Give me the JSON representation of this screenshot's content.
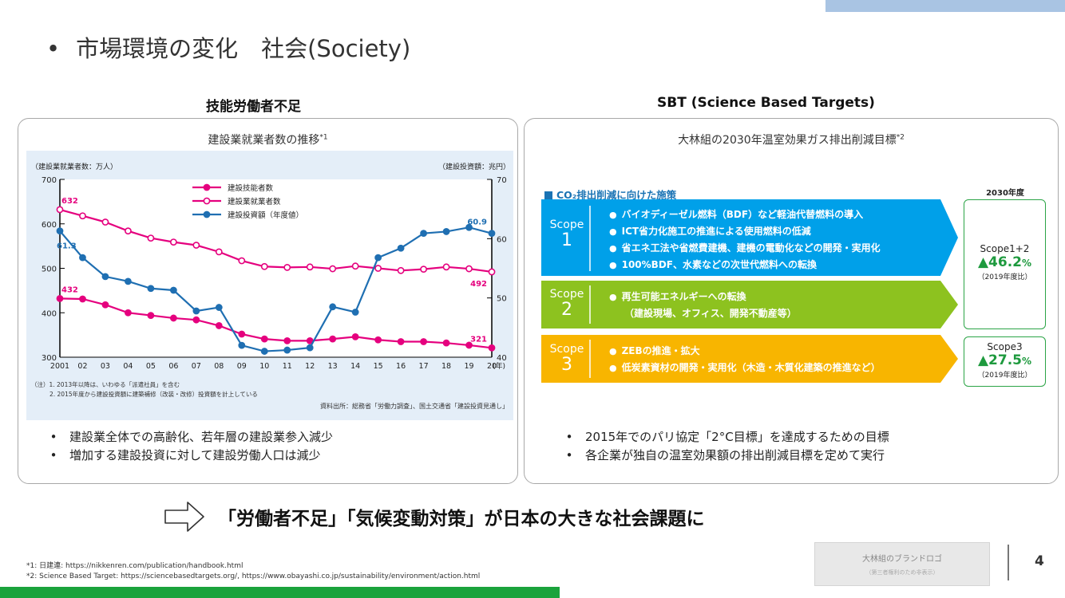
{
  "slide": {
    "title_bullet": "•",
    "title": "市場環境の変化　社会(Society)",
    "page_number": "4"
  },
  "left": {
    "heading": "技能労働者不足",
    "figure_caption": "建設業就業者数の推移",
    "figure_caption_ref": "*1",
    "bullets": [
      "建設業全体での高齢化、若年層の建設業参入減少",
      "増加する建設投資に対して建設労働人口は減少"
    ]
  },
  "chart_data": {
    "type": "line",
    "left_axis_label": "（建設業就業者数：万人）",
    "right_axis_label": "（建設投資額：兆円）",
    "x": [
      "2001",
      "02",
      "03",
      "04",
      "05",
      "06",
      "07",
      "08",
      "09",
      "10",
      "11",
      "12",
      "13",
      "14",
      "15",
      "16",
      "17",
      "18",
      "19",
      "20"
    ],
    "x_unit": "(年)",
    "left_ylim": [
      300,
      700
    ],
    "left_ticks": [
      "700",
      "600",
      "500",
      "400",
      "300"
    ],
    "right_ylim": [
      40,
      70
    ],
    "right_ticks": [
      "70",
      "60",
      "50",
      "40"
    ],
    "series": [
      {
        "name": "建設技能者数",
        "axis": "left",
        "color": "#e5007e",
        "marker": "filled",
        "values": [
          432,
          431,
          418,
          400,
          394,
          388,
          384,
          371,
          352,
          341,
          337,
          337,
          341,
          346,
          339,
          335,
          335,
          332,
          327,
          321
        ]
      },
      {
        "name": "建設業就業者数",
        "axis": "left",
        "color": "#e5007e",
        "marker": "hollow",
        "values": [
          632,
          618,
          604,
          584,
          568,
          559,
          552,
          537,
          517,
          504,
          502,
          503,
          499,
          505,
          500,
          495,
          498,
          503,
          499,
          492
        ]
      },
      {
        "name": "建設投資額（年度値）",
        "axis": "right",
        "color": "#1f6fb2",
        "marker": "filled",
        "values": [
          61.3,
          56.8,
          53.6,
          52.8,
          51.6,
          51.3,
          47.8,
          48.4,
          42.0,
          41.0,
          41.2,
          41.6,
          48.5,
          47.6,
          56.8,
          58.4,
          60.9,
          61.2,
          61.9,
          60.9
        ]
      }
    ],
    "annotations": {
      "start_employees": "632",
      "start_skilled": "432",
      "start_investment": "61.3",
      "end_investment": "60.9",
      "end_employees": "492",
      "end_skilled": "321"
    },
    "notes": [
      "（注）1. 2013年以降は、いわゆる「派遣社員」を含む",
      "2. 2015年度から建設投資額に建築補修（改装・改修）投資額を計上している"
    ],
    "source": "資料出所：総務省「労働力調査」、国土交通省「建設投資見通し」"
  },
  "right": {
    "heading": "SBT (Science Based Targets)",
    "figure_caption": "大林組の2030年温室効果ガス排出削減目標",
    "figure_caption_ref": "*2",
    "diagram_title": "CO₂排出削減に向けた施策",
    "target_year": "2030年度",
    "scopes": [
      {
        "label_word": "Scope",
        "label_num": "1",
        "color": "#00a0e9",
        "items": [
          "バイオディーゼル燃料（BDF）など軽油代替燃料の導入",
          "ICT省力化施工の推進による使用燃料の低減",
          "省エネ工法や省燃費建機、建機の電動化などの開発・実用化",
          "100%BDF、水素などの次世代燃料への転換"
        ]
      },
      {
        "label_word": "Scope",
        "label_num": "2",
        "color": "#8dc21f",
        "items": [
          "再生可能エネルギーへの転換",
          "（建設現場、オフィス、開発不動産等）"
        ]
      },
      {
        "label_word": "Scope",
        "label_num": "3",
        "color": "#f8b500",
        "items": [
          "ZEBの推進・拡大",
          "低炭素資材の開発・実用化（木造・木質化建築の推進など）"
        ]
      }
    ],
    "targets": [
      {
        "name": "Scope1+2",
        "value": "▲46.2",
        "unit": "%",
        "base": "（2019年度比）"
      },
      {
        "name": "Scope3",
        "value": "▲27.5",
        "unit": "%",
        "base": "（2019年度比）"
      }
    ],
    "bullets": [
      "2015年でのパリ協定「2°C目標」を達成するための目標",
      "各企業が独自の温室効果額の排出削減目標を定めて実行"
    ]
  },
  "conclusion": {
    "text": "「労働者不足」「気候変動対策」が日本の大きな社会課題に"
  },
  "footnotes": [
    "*1: 日建連: https://nikkenren.com/publication/handbook.html",
    "*2: Science Based Target: https://sciencebasedtargets.org/, https://www.obayashi.co.jp/sustainability/environment/action.html"
  ],
  "logo": {
    "line1": "大林組のブランドロゴ",
    "line2": "（第三者権利のため非表示）"
  }
}
